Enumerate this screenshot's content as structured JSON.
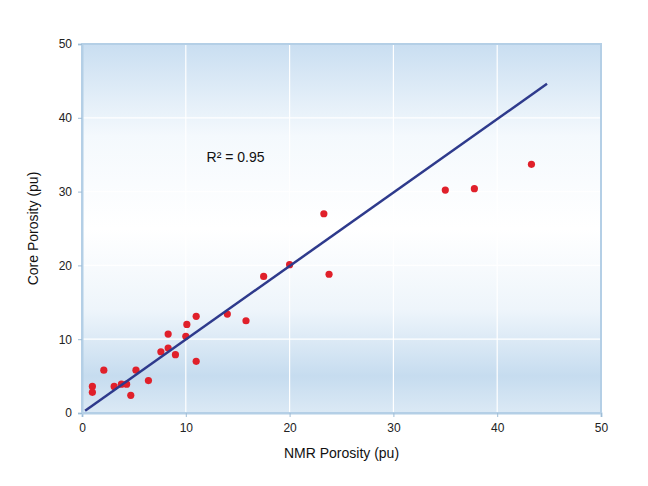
{
  "chart_data": {
    "type": "scatter",
    "x_label": "NMR Porosity (pu)",
    "y_label": "Core Porosity (pu)",
    "annotation": "R² = 0.95",
    "xlim": [
      0,
      50
    ],
    "ylim": [
      0,
      50
    ],
    "xticks": [
      0,
      10,
      20,
      30,
      40,
      50
    ],
    "yticks": [
      0,
      10,
      20,
      30,
      40,
      50
    ],
    "grid": true,
    "series": [
      {
        "type": "scatter",
        "color": "#e0202a",
        "marker": "circle",
        "x": [
          1,
          1,
          2.1,
          3.1,
          3.8,
          4.3,
          4.7,
          5.2,
          6.4,
          7.6,
          8.3,
          8.3,
          9,
          10,
          10.1,
          11,
          11,
          14,
          15.8,
          17.5,
          20,
          23.3,
          23.8,
          35,
          37.8,
          43.3
        ],
        "values": [
          3.6,
          2.8,
          5.8,
          3.6,
          3.9,
          3.9,
          2.4,
          5.8,
          4.4,
          8.3,
          10.7,
          8.8,
          7.9,
          10.4,
          12,
          13.1,
          7,
          13.4,
          12.5,
          18.5,
          20.1,
          27,
          18.8,
          30.2,
          30.4,
          33.7
        ]
      },
      {
        "type": "line",
        "color": "#2e3a8c",
        "line_style": "solid",
        "x": [
          0.3,
          44.8
        ],
        "values": [
          0.3,
          44.6
        ]
      }
    ]
  }
}
